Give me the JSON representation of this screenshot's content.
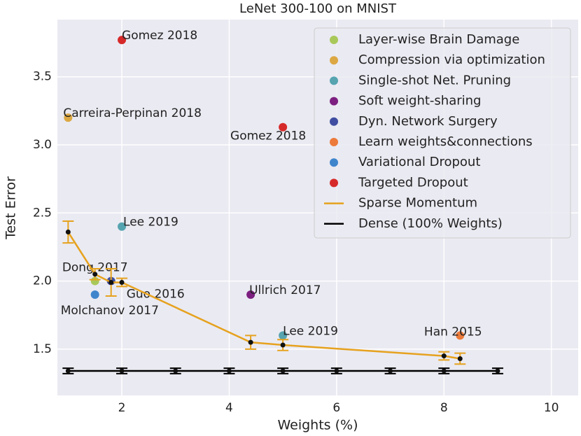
{
  "chart_data": {
    "type": "scatter",
    "title": "LeNet 300-100 on MNIST",
    "x_label": "Weights (%)",
    "y_label": "Test Error",
    "xlim": [
      0.8,
      10.5
    ],
    "ylim": [
      1.16,
      3.92
    ],
    "xticks": [
      2,
      4,
      6,
      8,
      10
    ],
    "yticks": [
      1.5,
      {
        "value": 2,
        "label": "2.0"
      },
      2.5,
      {
        "value": 3,
        "label": "3.0"
      },
      3.5
    ],
    "grid": true,
    "legend": "upper right",
    "series": [
      {
        "name": "Layer-wise Brain Damage",
        "color": "#a9c85a",
        "x": [
          1.5
        ],
        "values": [
          2.0
        ],
        "point_labels": [
          "Dong 2017"
        ]
      },
      {
        "name": "Compression via optimization",
        "color": "#dca843",
        "x": [
          1.0
        ],
        "values": [
          3.2
        ],
        "point_labels": [
          "Carreira-Perpinan 2018"
        ]
      },
      {
        "name": "Single-shot Net. Pruning",
        "color": "#55a4b0",
        "x": [
          2.0,
          5.0
        ],
        "values": [
          2.4,
          1.6
        ],
        "point_labels": [
          "Lee 2019",
          "Lee 2019"
        ]
      },
      {
        "name": "Soft weight-sharing",
        "color": "#7c1f80",
        "x": [
          4.4
        ],
        "values": [
          1.9
        ],
        "point_labels": [
          "Ullrich 2017"
        ]
      },
      {
        "name": "Dyn. Network Surgery",
        "color": "#3f4ea0",
        "x": [
          1.8
        ],
        "values": [
          2.0
        ],
        "point_labels": [
          "Guo 2016"
        ]
      },
      {
        "name": "Learn weights&connections",
        "color": "#ec7a3a",
        "x": [
          8.3
        ],
        "values": [
          1.6
        ],
        "point_labels": [
          "Han 2015"
        ]
      },
      {
        "name": "Variational Dropout",
        "color": "#3f85cc",
        "x": [
          1.5
        ],
        "values": [
          1.9
        ],
        "point_labels": [
          "Molchanov 2017"
        ]
      },
      {
        "name": "Targeted Dropout",
        "color": "#d62a2a",
        "x": [
          2.0,
          5.0
        ],
        "values": [
          3.77,
          3.13
        ],
        "point_labels": [
          "Gomez 2018",
          "Gomez 2018"
        ]
      },
      {
        "name": "Sparse Momentum",
        "color": "#e6a21e",
        "type": "line",
        "x": [
          1.0,
          1.5,
          1.8,
          2.0,
          4.4,
          5.0,
          8.0,
          8.3
        ],
        "values": [
          2.36,
          2.05,
          1.99,
          1.99,
          1.55,
          1.53,
          1.45,
          1.43
        ],
        "errors": [
          0.08,
          0.04,
          0.1,
          0.03,
          0.05,
          0.04,
          0.03,
          0.04
        ]
      },
      {
        "name": "Dense (100% Weights)",
        "color": "#000000",
        "type": "line",
        "x": [
          1,
          2,
          3,
          4,
          5,
          6,
          7,
          8,
          9
        ],
        "values": [
          1.34,
          1.34,
          1.34,
          1.34,
          1.34,
          1.34,
          1.34,
          1.34,
          1.34
        ],
        "errors": [
          0.02,
          0.02,
          0.02,
          0.02,
          0.02,
          0.02,
          0.02,
          0.02,
          0.02
        ]
      }
    ]
  }
}
